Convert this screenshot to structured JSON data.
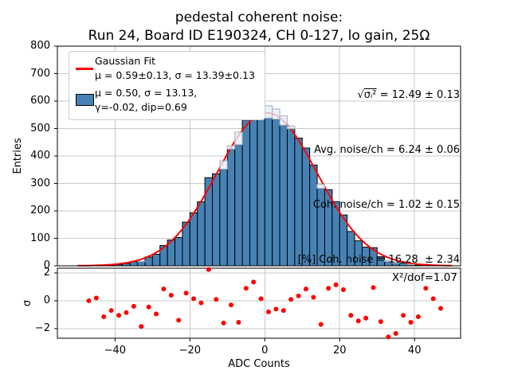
{
  "figure": {
    "title_line1": "pedestal coherent noise:",
    "title_line2": "Run 24, Board ID E190324, CH 0-127, lo gain, 25Ω"
  },
  "legend": {
    "fit_label": "Gaussian Fit",
    "fit_params": "μ = 0.59±0.13, σ = 13.39±0.13",
    "hist_params_line1": "μ = 0.50, σ = 13.13,",
    "hist_params_line2": "γ=-0.02, dip=0.69"
  },
  "stats": {
    "sqrt_symbol": "√",
    "sqrt_radicand": "σᵢ²",
    "sqrt_rest": " = 12.49 ± 0.13",
    "line2": "Avg. noise/ch = 6.24 ± 0.06",
    "line3": "Coh. noise/ch = 1.02 ± 0.15",
    "line4": "[%] Coh. noise = 16.28  ± 2.34"
  },
  "axes": {
    "main_ylabel": "Entries",
    "residual_ylabel": "σ",
    "xlabel": "ADC Counts",
    "residual_annotation": "X²/dof=1.07"
  },
  "colors": {
    "bar_fill": "#4682B4",
    "bar_edge": "#000000",
    "ideal_fill": "#E3ECF7",
    "ideal_fill_alpha": 0.8,
    "ideal_edge": "#A6B0BC",
    "fit_line": "#FF0000",
    "point": "#FF0000",
    "grid": "#C8C8C8",
    "frame": "#000000"
  },
  "chart_data": [
    {
      "type": "bar",
      "title": "pedestal coherent noise: Run 24, Board ID E190324, CH 0-127, lo gain, 25Ω",
      "xlabel": "ADC Counts",
      "ylabel": "Entries",
      "grid": true,
      "legend_position": "upper left",
      "xlim": [
        -55.4,
        52.3
      ],
      "ylim": [
        0,
        800
      ],
      "xticks": [
        -40,
        -20,
        0,
        20,
        40
      ],
      "xtick_labels": [
        "−40",
        "−20",
        "0",
        "20",
        "40"
      ],
      "yticks": [
        0,
        100,
        200,
        300,
        400,
        500,
        600,
        700,
        800
      ],
      "ytick_labels": [
        "0",
        "100",
        "200",
        "300",
        "400",
        "500",
        "600",
        "700",
        "800"
      ],
      "bin_width": 2,
      "bin_centers": [
        -47,
        -45,
        -43,
        -41,
        -39,
        -37,
        -35,
        -33,
        -31,
        -29,
        -27,
        -25,
        -23,
        -21,
        -19,
        -17,
        -15,
        -13,
        -11,
        -9,
        -7,
        -5,
        -3,
        -1,
        1,
        3,
        5,
        7,
        9,
        11,
        13,
        15,
        17,
        19,
        21,
        23,
        25,
        27,
        29,
        31,
        33,
        35,
        37,
        39,
        41,
        43,
        45,
        47
      ],
      "entries": [
        1,
        2,
        1,
        3,
        4,
        8,
        15,
        15,
        32,
        42,
        74,
        94,
        103,
        159,
        193,
        233,
        321,
        335,
        352,
        425,
        441,
        531,
        569,
        557,
        538,
        534,
        512,
        499,
        465,
        429,
        367,
        282,
        277,
        233,
        185,
        125,
        91,
        68,
        66,
        33,
        16,
        10,
        10,
        4,
        3,
        5,
        3,
        1
      ],
      "overlay_entries": [
        0,
        1,
        1,
        2,
        4,
        6,
        10,
        16,
        24,
        36,
        52,
        73,
        99,
        133,
        172,
        218,
        270,
        325,
        382,
        437,
        487,
        529,
        561,
        579,
        583,
        571,
        546,
        509,
        463,
        409,
        352,
        297,
        244,
        195,
        152,
        115,
        85,
        61,
        43,
        30,
        20,
        13,
        8,
        5,
        3,
        2,
        1,
        1
      ],
      "fit": {
        "label": "Gaussian Fit",
        "amplitude": 557,
        "mu": 0.59,
        "mu_err": 0.13,
        "sigma": 13.39,
        "sigma_err": 0.13
      },
      "hist_stats": {
        "mu": 0.5,
        "sigma": 13.13,
        "gamma": -0.02,
        "dip": 0.69
      },
      "stats_box": {
        "sqrt_mean_sigma2": "12.49 ± 0.13",
        "avg_noise_per_ch": "6.24 ± 0.06",
        "coh_noise_per_ch": "1.02 ± 0.15",
        "pct_coh_noise": "16.28 ± 2.34"
      }
    },
    {
      "type": "scatter",
      "ylabel": "σ",
      "grid": true,
      "xlim": [
        -55.4,
        52.3
      ],
      "ylim": [
        -2.69,
        2.34
      ],
      "yticks": [
        -2,
        0,
        2
      ],
      "ytick_labels": [
        "−2",
        "0",
        "2"
      ],
      "chi2_per_dof": 1.07,
      "x": [
        -47,
        -45,
        -43,
        -41,
        -39,
        -37,
        -35,
        -33,
        -31,
        -29,
        -27,
        -25,
        -23,
        -21,
        -19,
        -17,
        -15,
        -13,
        -11,
        -9,
        -7,
        -5,
        -3,
        -1,
        1,
        3,
        5,
        7,
        9,
        11,
        13,
        15,
        17,
        19,
        21,
        23,
        25,
        27,
        29,
        31,
        33,
        35,
        37,
        39,
        41,
        43,
        45,
        47
      ],
      "sigma": [
        0.0,
        0.2,
        -1.15,
        -0.7,
        -1.05,
        -0.85,
        -0.4,
        -1.85,
        -0.45,
        -0.95,
        0.85,
        0.4,
        -1.4,
        0.55,
        0.15,
        -0.15,
        2.25,
        0.1,
        -1.6,
        -0.3,
        -1.55,
        0.9,
        1.35,
        0.15,
        -0.8,
        -0.6,
        -0.7,
        0.1,
        0.35,
        0.85,
        0.25,
        -1.7,
        0.9,
        1.15,
        0.8,
        -1.05,
        -1.45,
        -1.25,
        0.95,
        -1.5,
        -2.6,
        -2.35,
        -1.05,
        -1.55,
        -1.15,
        0.9,
        0.15,
        -0.55
      ]
    }
  ]
}
